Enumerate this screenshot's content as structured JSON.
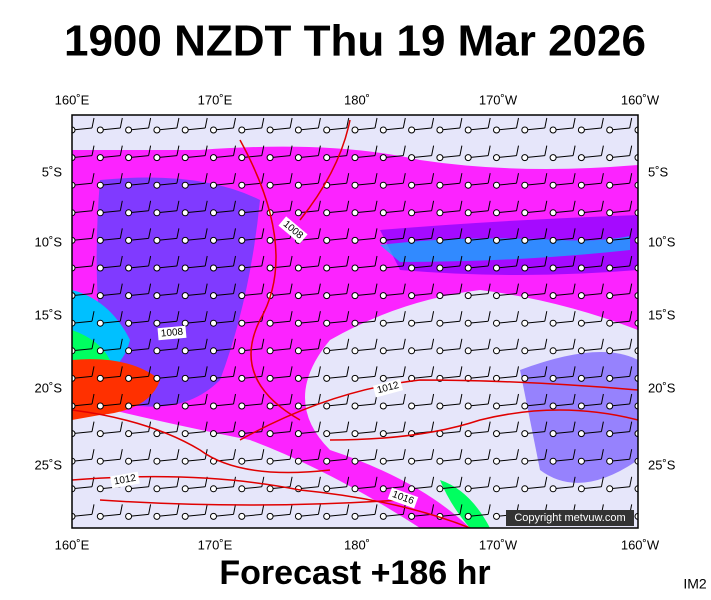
{
  "header": {
    "title": "1900 NZDT Thu 19 Mar 2026"
  },
  "map": {
    "top_labels": [
      "160˚E",
      "170˚E",
      "180˚",
      "170˚W",
      "160˚W"
    ],
    "bottom_labels": [
      "160˚E",
      "170˚E",
      "180˚",
      "170˚W",
      "160˚W"
    ],
    "left_labels": [
      "5˚S",
      "10˚S",
      "15˚S",
      "20˚S",
      "25˚S"
    ],
    "right_labels": [
      "5˚S",
      "10˚S",
      "15˚S",
      "20˚S",
      "25˚S"
    ],
    "isobar_labels": [
      "1008",
      "1008",
      "1012",
      "1012",
      "1016"
    ],
    "copyright": "Copyright metvuw.com"
  },
  "footer": {
    "forecast": "Forecast +186 hr",
    "id": "IM2"
  }
}
